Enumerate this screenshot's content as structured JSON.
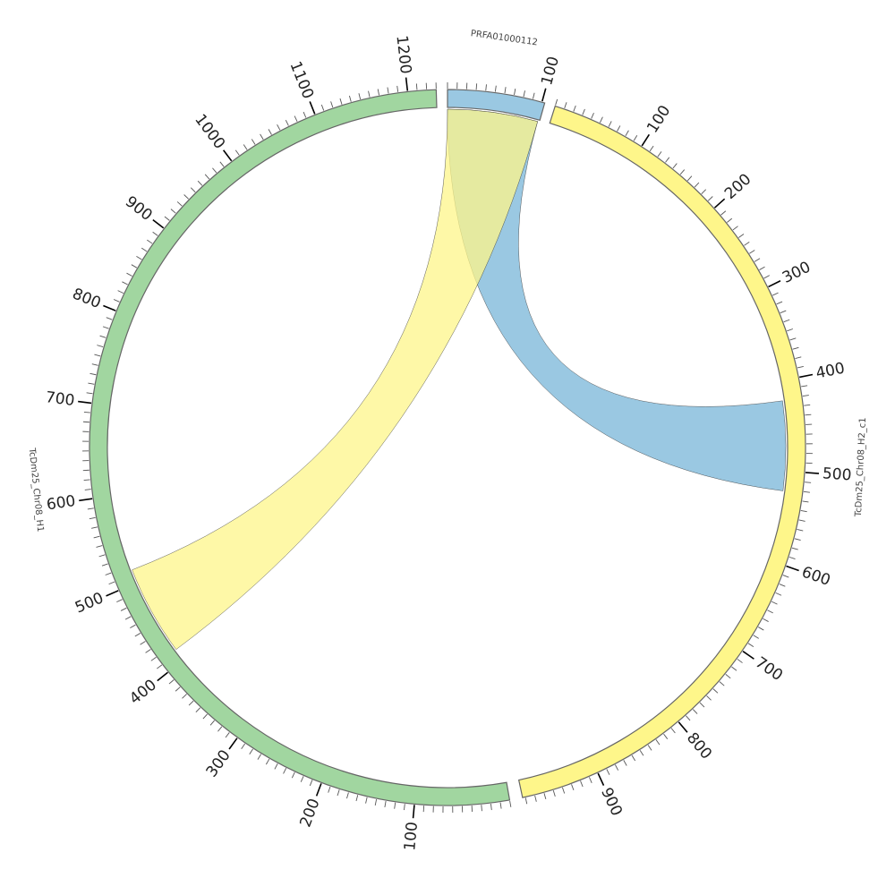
{
  "segments": [
    {
      "name": "PRFA01000112",
      "length": 103,
      "color": "#9ac8e2"
    },
    {
      "name": "TcDm25_Chr08_H2_c1",
      "length": 983,
      "color": "#fef68a"
    },
    {
      "name": "TcDm25_Chr08_H1",
      "length": 1230,
      "color": "#a1d6a0"
    }
  ],
  "tick_interval_major": 100,
  "tick_interval_minor": 10,
  "links": [
    {
      "source": {
        "segment": 0,
        "start": 0,
        "end": 101
      },
      "target": {
        "segment": 1,
        "start": 422,
        "end": 522
      },
      "color": "#9ac8e2"
    },
    {
      "source": {
        "segment": 0,
        "start": 0,
        "end": 101
      },
      "target": {
        "segment": 2,
        "start": 414,
        "end": 515
      },
      "color": "#fef68a"
    }
  ]
}
